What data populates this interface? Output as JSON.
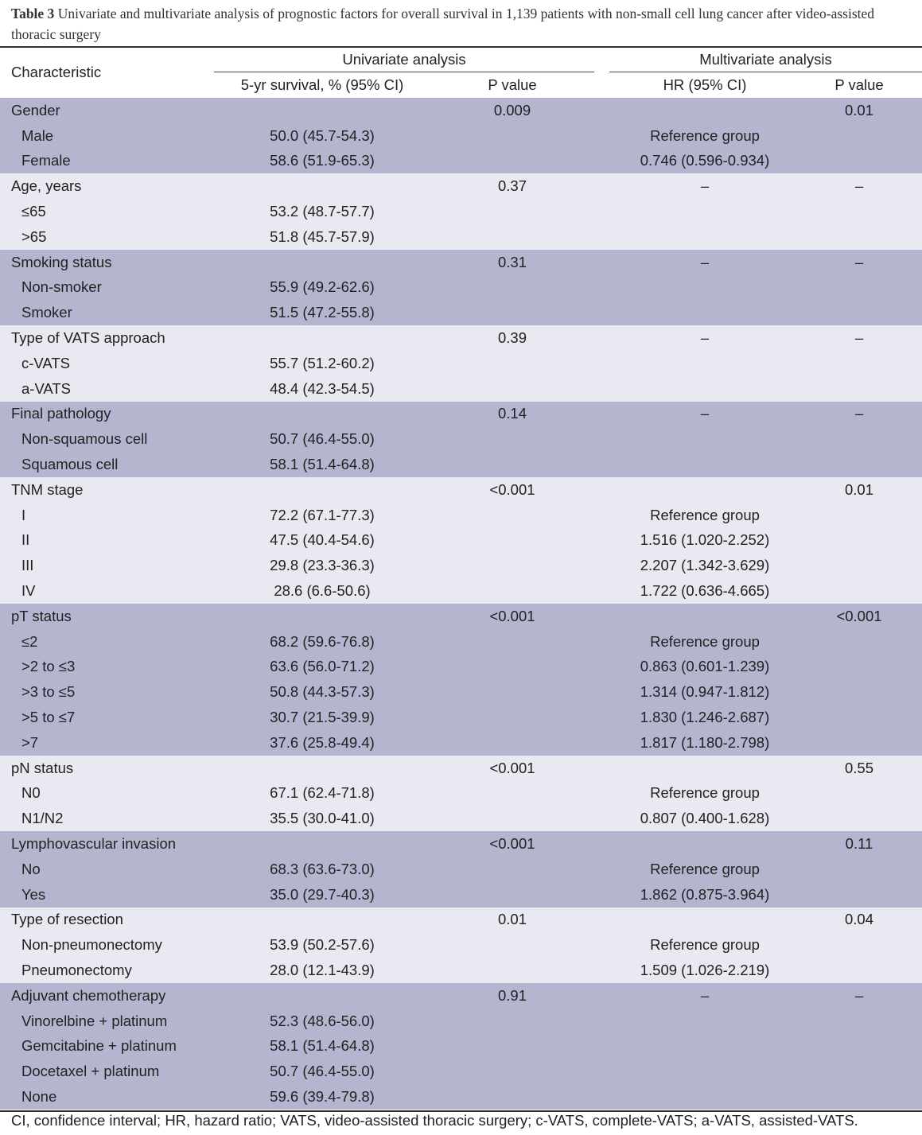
{
  "caption": {
    "label": "Table 3",
    "text": "Univariate and multivariate analysis of prognostic factors for overall survival in 1,139 patients with non-small cell lung cancer after video-assisted thoracic surgery"
  },
  "header": {
    "characteristic": "Characteristic",
    "univariate": "Univariate analysis",
    "multivariate": "Multivariate analysis",
    "survival": "5-yr survival, % (95% CI)",
    "p_value_uni": "P value",
    "hr": "HR (95% CI)",
    "p_value_multi": "P value"
  },
  "colors": {
    "band_dark": "#b4b6cf",
    "band_light": "#e8e9f1"
  },
  "groups": [
    {
      "label": "Gender",
      "p_uni": "0.009",
      "hr": "",
      "p_multi": "0.01",
      "rows": [
        {
          "label": "Male",
          "survival": "50.0 (45.7-54.3)",
          "hr": "Reference group"
        },
        {
          "label": "Female",
          "survival": "58.6 (51.9-65.3)",
          "hr": "0.746 (0.596-0.934)"
        }
      ]
    },
    {
      "label": "Age, years",
      "p_uni": "0.37",
      "hr": "–",
      "p_multi": "–",
      "rows": [
        {
          "label": "≤65",
          "survival": "53.2 (48.7-57.7)",
          "hr": ""
        },
        {
          "label": ">65",
          "survival": "51.8 (45.7-57.9)",
          "hr": ""
        }
      ]
    },
    {
      "label": "Smoking status",
      "p_uni": "0.31",
      "hr": "–",
      "p_multi": "–",
      "rows": [
        {
          "label": "Non-smoker",
          "survival": "55.9 (49.2-62.6)",
          "hr": ""
        },
        {
          "label": "Smoker",
          "survival": "51.5 (47.2-55.8)",
          "hr": ""
        }
      ]
    },
    {
      "label": "Type of VATS approach",
      "p_uni": "0.39",
      "hr": "–",
      "p_multi": "–",
      "rows": [
        {
          "label": "c-VATS",
          "survival": "55.7 (51.2-60.2)",
          "hr": ""
        },
        {
          "label": "a-VATS",
          "survival": "48.4 (42.3-54.5)",
          "hr": ""
        }
      ]
    },
    {
      "label": "Final pathology",
      "p_uni": "0.14",
      "hr": "–",
      "p_multi": "–",
      "rows": [
        {
          "label": "Non-squamous cell",
          "survival": "50.7 (46.4-55.0)",
          "hr": ""
        },
        {
          "label": "Squamous cell",
          "survival": "58.1 (51.4-64.8)",
          "hr": ""
        }
      ]
    },
    {
      "label": "TNM stage",
      "p_uni": "<0.001",
      "hr": "",
      "p_multi": "0.01",
      "rows": [
        {
          "label": "I",
          "survival": "72.2 (67.1-77.3)",
          "hr": "Reference group"
        },
        {
          "label": "II",
          "survival": "47.5 (40.4-54.6)",
          "hr": "1.516 (1.020-2.252)"
        },
        {
          "label": "III",
          "survival": "29.8 (23.3-36.3)",
          "hr": "2.207 (1.342-3.629)"
        },
        {
          "label": "IV",
          "survival": "28.6 (6.6-50.6)",
          "hr": "1.722 (0.636-4.665)"
        }
      ]
    },
    {
      "label": "pT status",
      "p_uni": "<0.001",
      "hr": "",
      "p_multi": "<0.001",
      "rows": [
        {
          "label": "≤2",
          "survival": "68.2 (59.6-76.8)",
          "hr": "Reference group"
        },
        {
          "label": ">2 to ≤3",
          "survival": "63.6 (56.0-71.2)",
          "hr": "0.863 (0.601-1.239)"
        },
        {
          "label": ">3 to ≤5",
          "survival": "50.8 (44.3-57.3)",
          "hr": "1.314 (0.947-1.812)"
        },
        {
          "label": ">5 to ≤7",
          "survival": "30.7 (21.5-39.9)",
          "hr": "1.830 (1.246-2.687)"
        },
        {
          "label": ">7",
          "survival": "37.6 (25.8-49.4)",
          "hr": "1.817 (1.180-2.798)"
        }
      ]
    },
    {
      "label": "pN status",
      "p_uni": "<0.001",
      "hr": "",
      "p_multi": "0.55",
      "rows": [
        {
          "label": "N0",
          "survival": "67.1 (62.4-71.8)",
          "hr": "Reference group"
        },
        {
          "label": "N1/N2",
          "survival": "35.5 (30.0-41.0)",
          "hr": "0.807 (0.400-1.628)"
        }
      ]
    },
    {
      "label": "Lymphovascular invasion",
      "p_uni": "<0.001",
      "hr": "",
      "p_multi": "0.11",
      "rows": [
        {
          "label": "No",
          "survival": "68.3 (63.6-73.0)",
          "hr": "Reference group"
        },
        {
          "label": "Yes",
          "survival": "35.0 (29.7-40.3)",
          "hr": "1.862 (0.875-3.964)"
        }
      ]
    },
    {
      "label": "Type of resection",
      "p_uni": "0.01",
      "hr": "",
      "p_multi": "0.04",
      "rows": [
        {
          "label": "Non-pneumonectomy",
          "survival": "53.9 (50.2-57.6)",
          "hr": "Reference group"
        },
        {
          "label": "Pneumonectomy",
          "survival": "28.0 (12.1-43.9)",
          "hr": "1.509 (1.026-2.219)"
        }
      ]
    },
    {
      "label": "Adjuvant chemotherapy",
      "p_uni": "0.91",
      "hr": "–",
      "p_multi": "–",
      "rows": [
        {
          "label": "Vinorelbine + platinum",
          "survival": "52.3 (48.6-56.0)",
          "hr": ""
        },
        {
          "label": "Gemcitabine + platinum",
          "survival": "58.1 (51.4-64.8)",
          "hr": ""
        },
        {
          "label": "Docetaxel + platinum",
          "survival": "50.7 (46.4-55.0)",
          "hr": ""
        },
        {
          "label": "None",
          "survival": "59.6 (39.4-79.8)",
          "hr": ""
        }
      ]
    }
  ],
  "footnote": "CI, confidence interval; HR, hazard ratio; VATS, video-assisted thoracic surgery; c-VATS, complete-VATS; a-VATS, assisted-VATS."
}
